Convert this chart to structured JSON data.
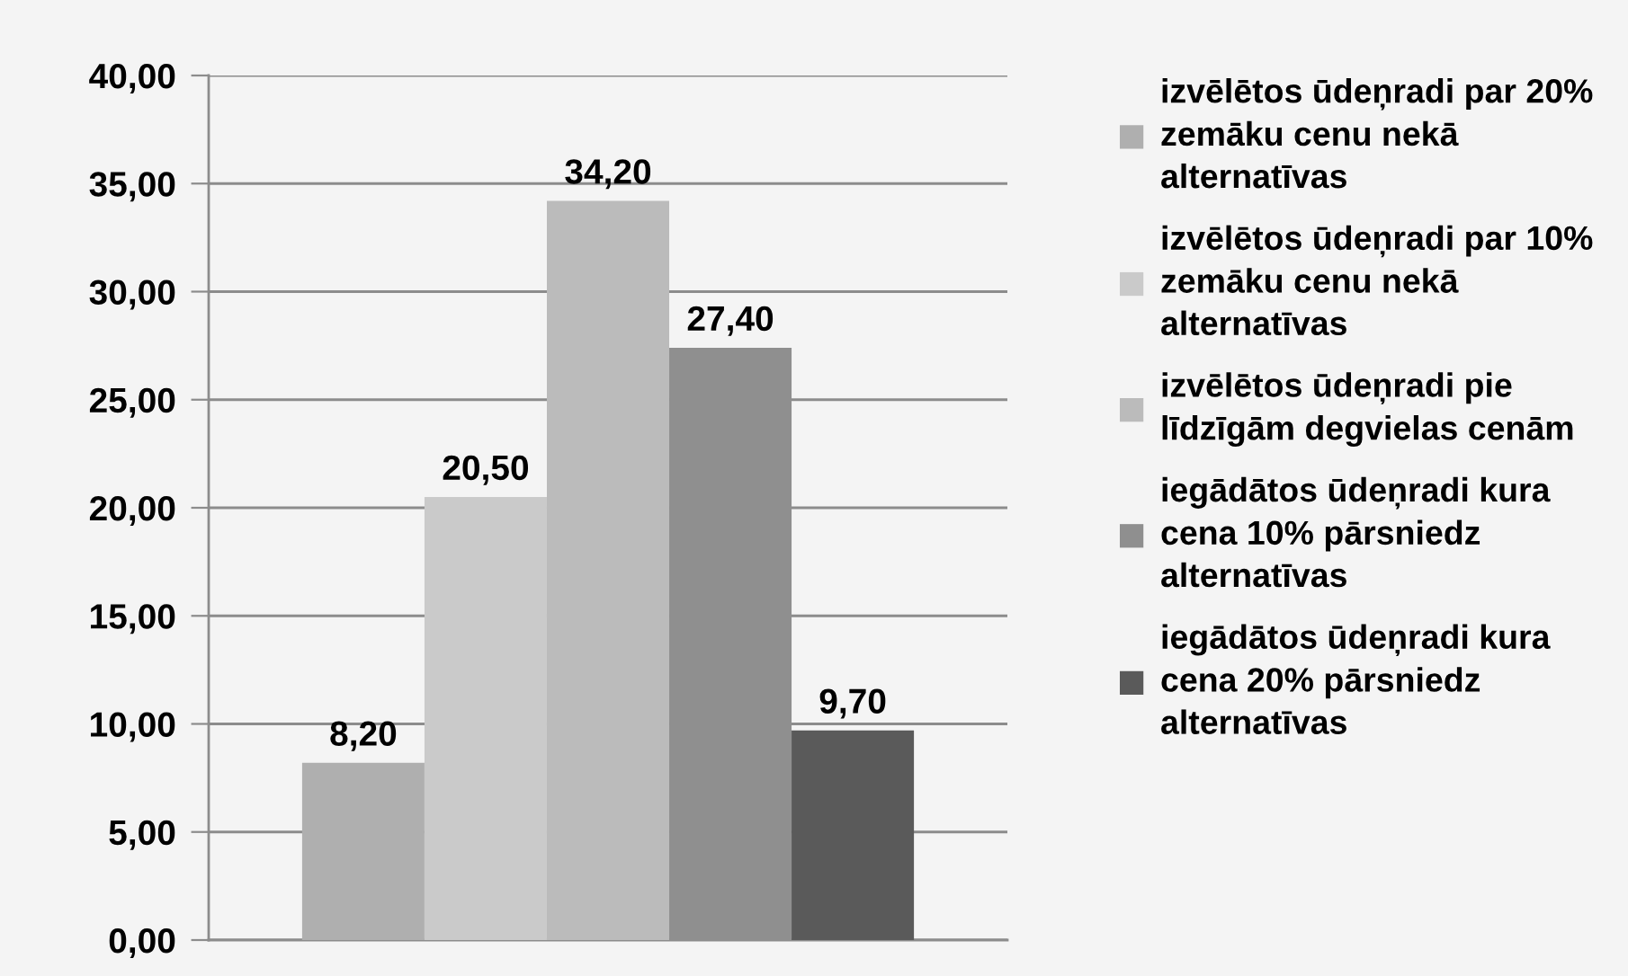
{
  "chart_data": {
    "type": "bar",
    "categories": [
      null
    ],
    "series": [
      {
        "name": "izvēlētos ūdeņradi par 20% zemāku cenu nekā alternatīvas",
        "color": "#afafaf",
        "values": [
          8.2
        ],
        "value_labels": [
          "8,20"
        ]
      },
      {
        "name": "izvēlētos ūdeņradi par 10% zemāku cenu nekā alternatīvas",
        "color": "#cacaca",
        "values": [
          20.5
        ],
        "value_labels": [
          "20,50"
        ]
      },
      {
        "name": "izvēlētos ūdeņradi pie līdzīgām degvielas cenām",
        "color": "#bbbbbb",
        "values": [
          34.2
        ],
        "value_labels": [
          "34,20"
        ]
      },
      {
        "name": "iegādātos ūdeņradi kura cena 10% pārsniedz alternatīvas",
        "color": "#8f8f8f",
        "values": [
          27.4
        ],
        "value_labels": [
          "27,40"
        ]
      },
      {
        "name": "iegādātos ūdeņradi kura cena 20% pārsniedz alternatīvas",
        "color": "#5a5a5a",
        "values": [
          9.7
        ],
        "value_labels": [
          "9,70"
        ]
      }
    ],
    "ylim": [
      0,
      40
    ],
    "yticks": [
      {
        "value": 0,
        "label": "0,00"
      },
      {
        "value": 5,
        "label": "5,00"
      },
      {
        "value": 10,
        "label": "10,00"
      },
      {
        "value": 15,
        "label": "15,00"
      },
      {
        "value": 20,
        "label": "20,00"
      },
      {
        "value": 25,
        "label": "25,00"
      },
      {
        "value": 30,
        "label": "30,00"
      },
      {
        "value": 35,
        "label": "35,00"
      },
      {
        "value": 40,
        "label": "40,00"
      }
    ],
    "grid": "y",
    "legend": "right"
  }
}
